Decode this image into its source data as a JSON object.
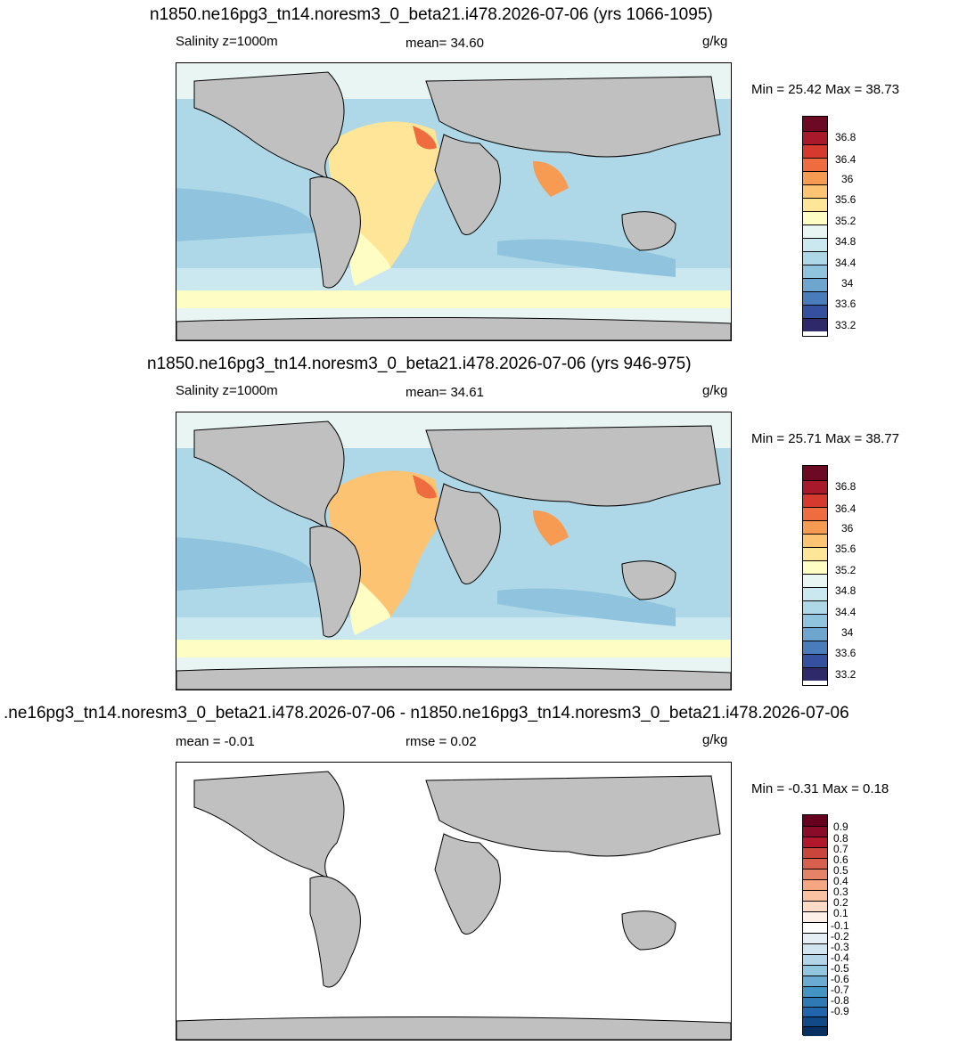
{
  "panels": [
    {
      "title": "n1850.ne16pg3_tn14.noresm3_0_beta21.i478.2026-07-06 (yrs 1066-1095)",
      "left_label": "Salinity z=1000m",
      "center_label": "mean=  34.60",
      "units": "g/kg",
      "minmax": "Min =  25.42 Max =  38.73",
      "colorbar_labels": [
        "36.8",
        "36.4",
        "36",
        "35.6",
        "35.2",
        "34.8",
        "34.4",
        "34",
        "33.6",
        "33.2"
      ]
    },
    {
      "title": "n1850.ne16pg3_tn14.noresm3_0_beta21.i478.2026-07-06 (yrs 946-975)",
      "left_label": "Salinity z=1000m",
      "center_label": "mean=  34.61",
      "units": "g/kg",
      "minmax": "Min =  25.71 Max =  38.77",
      "colorbar_labels": [
        "36.8",
        "36.4",
        "36",
        "35.6",
        "35.2",
        "34.8",
        "34.4",
        "34",
        "33.6",
        "33.2"
      ]
    },
    {
      "title": ".ne16pg3_tn14.noresm3_0_beta21.i478.2026-07-06 - n1850.ne16pg3_tn14.noresm3_0_beta21.i478.2026-07-06",
      "left_label": "mean =  -0.01",
      "center_label": "rmse =   0.02",
      "units": "g/kg",
      "minmax": "Min =  -0.31 Max =   0.18",
      "colorbar_labels": [
        "0.9",
        "0.8",
        "0.7",
        "0.6",
        "0.5",
        "0.4",
        "0.3",
        "0.2",
        "0.1",
        "-0.1",
        "-0.2",
        "-0.3",
        "-0.4",
        "-0.5",
        "-0.6",
        "-0.7",
        "-0.8",
        "-0.9"
      ]
    }
  ],
  "colors": {
    "land": "#c0c0c0",
    "salinity_scale": [
      "#6b0a22",
      "#a8192b",
      "#d63a2f",
      "#ee6c3f",
      "#f89b52",
      "#fcc372",
      "#fee597",
      "#fefdc4",
      "#e8f5f3",
      "#cbe8f0",
      "#aed8e7",
      "#8fc3de",
      "#6ea5cf",
      "#4a7cbc",
      "#34509e",
      "#2e2a69"
    ],
    "difference_scale": [
      "#67001f",
      "#8a0c28",
      "#b2182b",
      "#c9463d",
      "#d6604d",
      "#e58368",
      "#f4a582",
      "#f8c2a3",
      "#fddbc7",
      "#fdf0e8",
      "#ffffff",
      "#e4eef4",
      "#d1e5f0",
      "#b4d5e8",
      "#92c5de",
      "#6aabd1",
      "#4393c3",
      "#2f79b5",
      "#2166ac",
      "#124a87",
      "#053061"
    ]
  }
}
